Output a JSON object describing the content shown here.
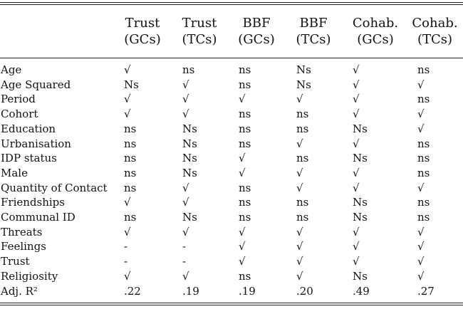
{
  "table": {
    "columns": [
      {
        "line1": "Trust",
        "line2": "(GCs)"
      },
      {
        "line1": "Trust",
        "line2": "(TCs)"
      },
      {
        "line1": "BBF",
        "line2": "(GCs)"
      },
      {
        "line1": "BBF",
        "line2": "(TCs)"
      },
      {
        "line1": "Cohab.",
        "line2": "(GCs)"
      },
      {
        "line1": "Cohab.",
        "line2": "(TCs)"
      }
    ],
    "rows": [
      {
        "label": "Age",
        "values": [
          "√",
          "ns",
          "ns",
          "Ns",
          "√",
          "ns"
        ]
      },
      {
        "label": "Age Squared",
        "values": [
          "Ns",
          "√",
          "ns",
          "Ns",
          "√",
          "√"
        ]
      },
      {
        "label": "Period",
        "values": [
          "√",
          "√",
          "√",
          "√",
          "√",
          "ns"
        ]
      },
      {
        "label": "Cohort",
        "values": [
          "√",
          "√",
          "ns",
          "ns",
          "√",
          "√"
        ]
      },
      {
        "label": "Education",
        "values": [
          "ns",
          "Ns",
          "ns",
          "ns",
          "Ns",
          "√"
        ]
      },
      {
        "label": "Urbanisation",
        "values": [
          "ns",
          "Ns",
          "ns",
          "√",
          "√",
          "ns"
        ]
      },
      {
        "label": "IDP status",
        "values": [
          "ns",
          "Ns",
          "√",
          "ns",
          "Ns",
          "ns"
        ]
      },
      {
        "label": "Male",
        "values": [
          "ns",
          "Ns",
          "√",
          "√",
          "√",
          "ns"
        ]
      },
      {
        "label": "Quantity of Contact",
        "values": [
          "ns",
          "√",
          "ns",
          "√",
          "√",
          "√"
        ]
      },
      {
        "label": "Friendships",
        "values": [
          "√",
          "√",
          "ns",
          "ns",
          "Ns",
          "ns"
        ]
      },
      {
        "label": "Communal ID",
        "values": [
          "ns",
          "Ns",
          "ns",
          "ns",
          "Ns",
          "ns"
        ]
      },
      {
        "label": "Threats",
        "values": [
          "√",
          "√",
          "√",
          "√",
          "√",
          "√"
        ]
      },
      {
        "label": "Feelings",
        "values": [
          "-",
          "-",
          "√",
          "√",
          "√",
          "√"
        ]
      },
      {
        "label": "Trust",
        "values": [
          "-",
          "-",
          "√",
          "√",
          "√",
          "√"
        ]
      },
      {
        "label": "Religiosity",
        "values": [
          "√",
          "√",
          "ns",
          "√",
          "Ns",
          "√"
        ]
      },
      {
        "label": "Adj. R²",
        "values": [
          ".22",
          ".19",
          ".19",
          ".20",
          ".49",
          ".27"
        ]
      }
    ]
  }
}
